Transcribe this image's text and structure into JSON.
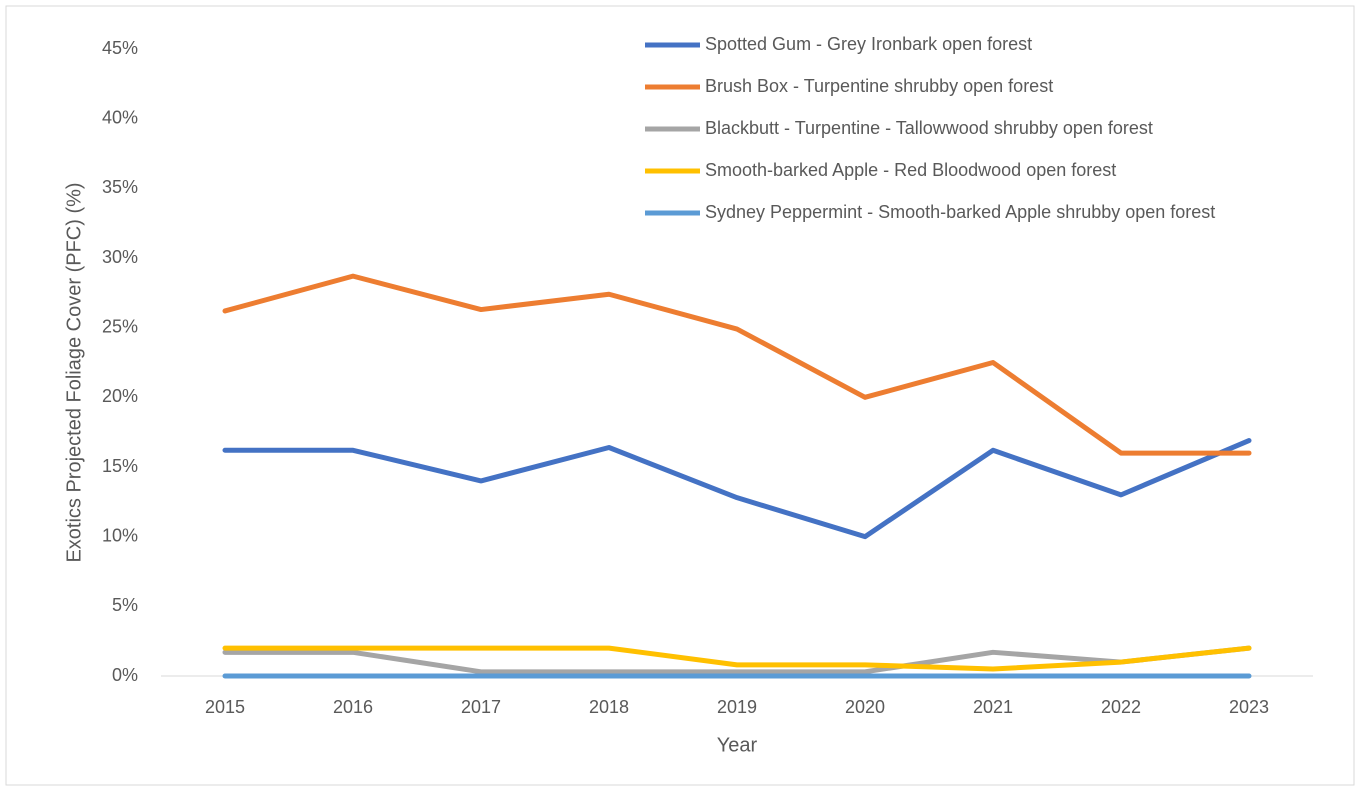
{
  "chart_data": {
    "type": "line",
    "x_label": "Year",
    "y_label": "Exotics Projected Foliage Cover (PFC) (%)",
    "categories": [
      "2015",
      "2016",
      "2017",
      "2018",
      "2019",
      "2020",
      "2021",
      "2022",
      "2023"
    ],
    "series": [
      {
        "name": "Spotted Gum - Grey Ironbark open forest",
        "color": "#4472c4",
        "values": [
          16.2,
          16.2,
          14,
          16.4,
          12.8,
          10,
          16.2,
          13,
          16.9
        ]
      },
      {
        "name": "Brush Box - Turpentine shrubby open forest",
        "color": "#ed7d31",
        "values": [
          26.2,
          28.7,
          26.3,
          27.4,
          24.9,
          20,
          22.5,
          16,
          16
        ]
      },
      {
        "name": "Blackbutt - Turpentine - Tallowwood shrubby open forest",
        "color": "#a5a5a5",
        "values": [
          1.7,
          1.7,
          0.3,
          0.3,
          0.3,
          0.3,
          1.7,
          1,
          2
        ]
      },
      {
        "name": "Smooth-barked Apple - Red Bloodwood open forest",
        "color": "#ffc000",
        "values": [
          2,
          2,
          2,
          2,
          0.8,
          0.8,
          0.5,
          1,
          2
        ]
      },
      {
        "name": "Sydney Peppermint - Smooth-barked Apple shrubby open forest",
        "color": "#5b9bd5",
        "values": [
          0,
          0,
          0,
          0,
          0,
          0,
          0,
          0,
          0
        ]
      }
    ],
    "ylim": [
      0,
      45
    ],
    "yticks": [
      {
        "value": 0,
        "label": "0%"
      },
      {
        "value": 5,
        "label": "5%"
      },
      {
        "value": 10,
        "label": "10%"
      },
      {
        "value": 15,
        "label": "15%"
      },
      {
        "value": 20,
        "label": "20%"
      },
      {
        "value": 25,
        "label": "25%"
      },
      {
        "value": 30,
        "label": "30%"
      },
      {
        "value": 35,
        "label": "35%"
      },
      {
        "value": 40,
        "label": "40%"
      },
      {
        "value": 45,
        "label": "45%"
      }
    ],
    "grid": false,
    "legend_position": "upper right"
  }
}
